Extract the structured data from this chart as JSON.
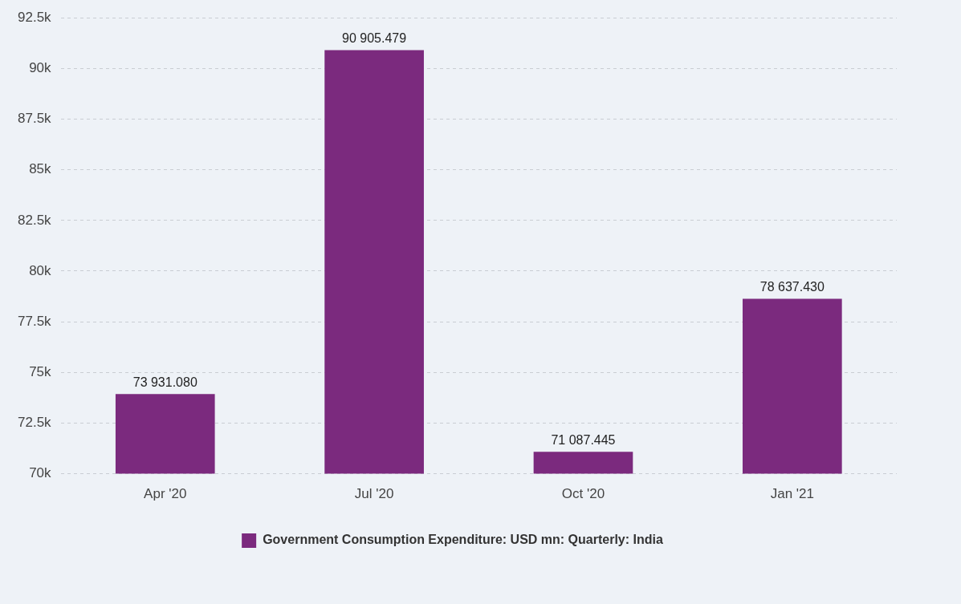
{
  "chart_data": {
    "type": "bar",
    "categories": [
      "Apr '20",
      "Jul '20",
      "Oct '20",
      "Jan '21"
    ],
    "series": [
      {
        "name": "Government Consumption Expenditure: USD mn: Quarterly: India",
        "color": "#7b2a7e",
        "values": [
          73931.08,
          90905.479,
          71087.445,
          78637.43
        ],
        "value_labels": [
          "73 931.080",
          "90 905.479",
          "71 087.445",
          "78 637.430"
        ]
      }
    ],
    "ylim": [
      70000,
      92500
    ],
    "yticks": [
      {
        "value": 70000,
        "label": "70k"
      },
      {
        "value": 72500,
        "label": "72.5k"
      },
      {
        "value": 75000,
        "label": "75k"
      },
      {
        "value": 77500,
        "label": "77.5k"
      },
      {
        "value": 80000,
        "label": "80k"
      },
      {
        "value": 82500,
        "label": "82.5k"
      },
      {
        "value": 85000,
        "label": "85k"
      },
      {
        "value": 87500,
        "label": "87.5k"
      },
      {
        "value": 90000,
        "label": "90k"
      },
      {
        "value": 92500,
        "label": "92.5k"
      }
    ],
    "grid": "y",
    "legend": "bottom"
  }
}
